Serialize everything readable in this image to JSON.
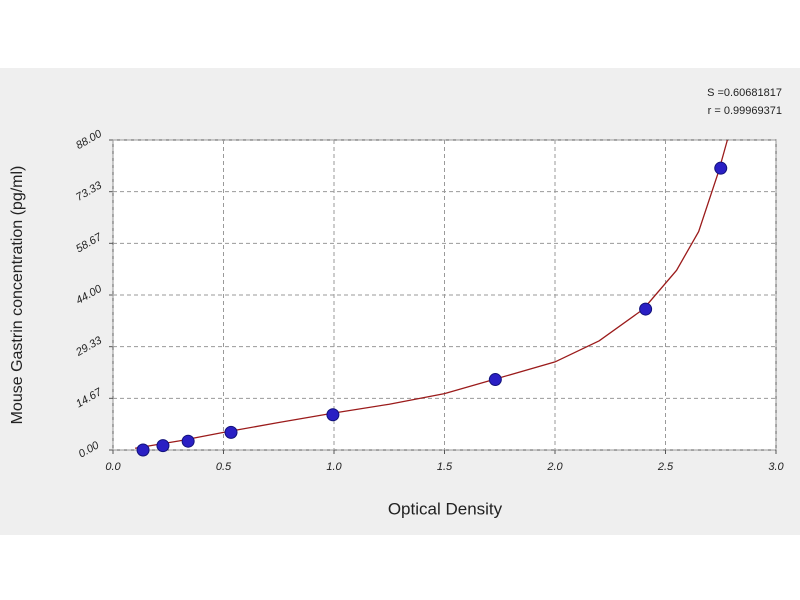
{
  "chart_data": {
    "type": "scatter",
    "x_label": "Optical Density",
    "y_label": "Mouse Gastrin concentration (pg/ml)",
    "annotations": [
      "S =0.60681817",
      "r = 0.99969371"
    ],
    "xlim": [
      0,
      3
    ],
    "ylim": [
      0,
      88
    ],
    "xticks": [
      {
        "value": 0,
        "label": "0.0"
      },
      0.5,
      {
        "value": 1,
        "label": "1.0"
      },
      1.5,
      {
        "value": 2,
        "label": "2.0"
      },
      2.5,
      {
        "value": 3,
        "label": "3.0"
      }
    ],
    "yticks": [
      {
        "value": 0,
        "label": "0.00"
      },
      {
        "value": 14.67,
        "label": "14.67"
      },
      {
        "value": 29.33,
        "label": "29.33"
      },
      {
        "value": 44,
        "label": "44.00"
      },
      {
        "value": 58.67,
        "label": "58.67"
      },
      {
        "value": 73.33,
        "label": "73.33"
      },
      {
        "value": 88,
        "label": "88.00"
      }
    ],
    "grid": true,
    "series": [
      {
        "type": "scatter",
        "color": "#2a1fc4",
        "x": [
          0.136,
          0.226,
          0.34,
          0.534,
          0.995,
          1.73,
          2.41,
          2.75
        ],
        "values": [
          0,
          1.25,
          2.5,
          5,
          10,
          20,
          40,
          80
        ]
      },
      {
        "type": "line",
        "color": "#9b1b1b",
        "x": [
          0.1,
          0.3,
          0.5,
          0.75,
          1.0,
          1.25,
          1.5,
          1.75,
          2.0,
          2.2,
          2.4,
          2.55,
          2.65,
          2.74,
          2.78
        ],
        "values": [
          0.5,
          2.6,
          5,
          7.8,
          10.5,
          13,
          16,
          20.5,
          25,
          31,
          40,
          51,
          62,
          79,
          88
        ]
      }
    ]
  }
}
